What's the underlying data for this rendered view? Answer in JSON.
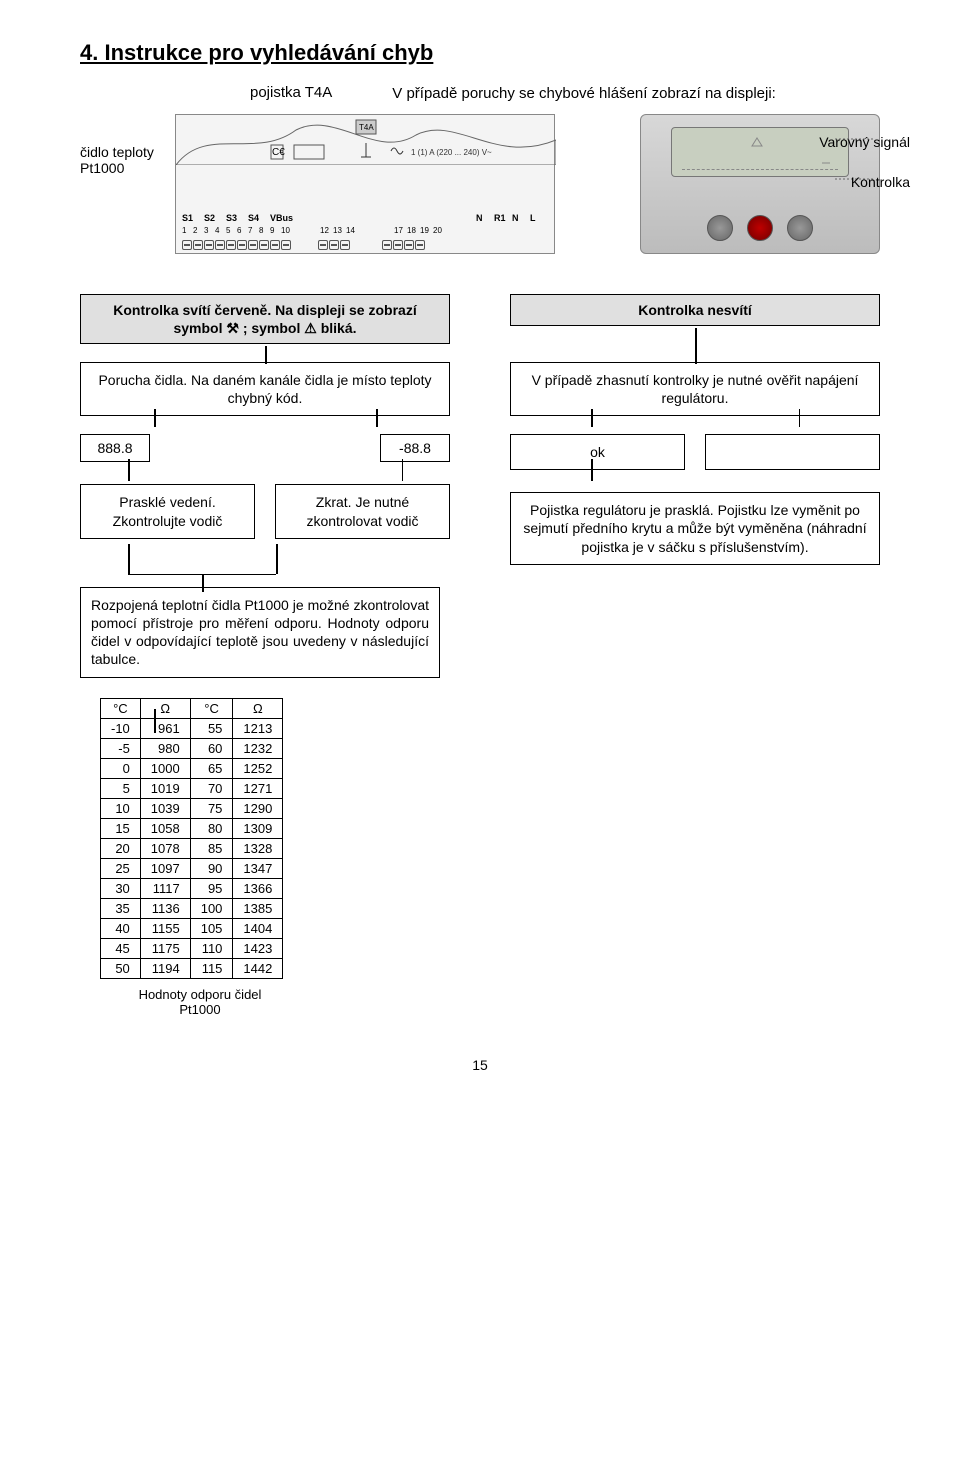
{
  "title": "4.  Instrukce pro vyhledávání chyb",
  "fuse_label": "pojistka T4A",
  "intro_text": "V případě poruchy se chybové hlášení zobrazí na displeji:",
  "sensor_label_line1": "čidlo teploty",
  "sensor_label_line2": "Pt1000",
  "signal_label": "Varovný signál",
  "kontrolka_label": "Kontrolka",
  "terminal": {
    "top_labels": [
      "T4A",
      "1 (1) A (220 ... 240) V~"
    ],
    "s_labels": [
      "S1",
      "S2",
      "S3",
      "S4",
      "VBus"
    ],
    "right_labels": [
      "N",
      "R1",
      "N",
      "L"
    ],
    "numbers": [
      "1",
      "2",
      "3",
      "4",
      "5",
      "6",
      "7",
      "8",
      "9",
      "10",
      "",
      "12",
      "13",
      "14",
      "",
      "",
      "17",
      "18",
      "19",
      "20"
    ]
  },
  "left": {
    "header": "Kontrolka svítí červeně. Na displeji se zobrazí symbol ⚒ ; symbol ⚠ bliká.",
    "fault": "Porucha čidla. Na daném kanále čidla je místo teploty chybný kód.",
    "code1": "888.8",
    "code2": "-88.8",
    "action1": "Prasklé vedení. Zkontrolujte vodič",
    "action2": "Zkrat. Je nutné zkontrolovat vodič",
    "resistance_text": "Rozpojená teplotní čidla Pt1000 je možné zkontrolovat pomocí přístroje pro měření odporu. Hodnoty odporu čidel v odpovídající teplotě jsou uvedeny v následující tabulce."
  },
  "right": {
    "header": "Kontrolka nesvítí",
    "check": "V případě zhasnutí kontrolky je nutné ověřit napájení regulátoru.",
    "ok": "ok",
    "fuse": "Pojistka regulátoru je prasklá. Pojistku lze vyměnit po sejmutí předního krytu a může být vyměněna (náhradní pojistka je v sáčku s příslušenstvím)."
  },
  "resistance_table": {
    "headers": [
      "°C",
      "Ω",
      "°C",
      "Ω"
    ],
    "rows": [
      [
        "-10",
        "961",
        "55",
        "1213"
      ],
      [
        "-5",
        "980",
        "60",
        "1232"
      ],
      [
        "0",
        "1000",
        "65",
        "1252"
      ],
      [
        "5",
        "1019",
        "70",
        "1271"
      ],
      [
        "10",
        "1039",
        "75",
        "1290"
      ],
      [
        "15",
        "1058",
        "80",
        "1309"
      ],
      [
        "20",
        "1078",
        "85",
        "1328"
      ],
      [
        "25",
        "1097",
        "90",
        "1347"
      ],
      [
        "30",
        "1117",
        "95",
        "1366"
      ],
      [
        "35",
        "1136",
        "100",
        "1385"
      ],
      [
        "40",
        "1155",
        "105",
        "1404"
      ],
      [
        "45",
        "1175",
        "110",
        "1423"
      ],
      [
        "50",
        "1194",
        "115",
        "1442"
      ]
    ],
    "caption_line1": "Hodnoty odporu čidel",
    "caption_line2": "Pt1000"
  },
  "page_number": "15"
}
